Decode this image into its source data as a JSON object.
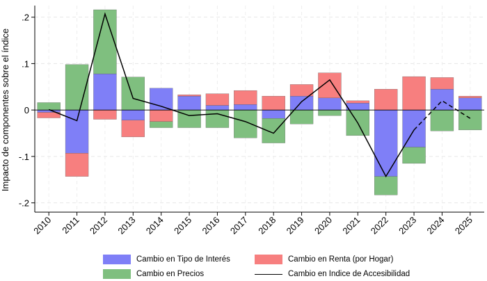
{
  "chart_data": {
    "type": "bar",
    "stacked": true,
    "title": "",
    "ylabel": "Impacto de componentes sobre el índice",
    "xlabel": "",
    "ylim": [
      -0.22,
      0.225
    ],
    "yticks": [
      -0.2,
      -0.1,
      0,
      0.1,
      0.2
    ],
    "ytick_labels": [
      "-.2",
      "-.1",
      "0",
      ".1",
      ".2"
    ],
    "grid": true,
    "legend_position": "bottom",
    "categories": [
      "2010",
      "2011",
      "2012",
      "2013",
      "2014",
      "2015",
      "2016",
      "2017",
      "2018",
      "2019",
      "2020",
      "2021",
      "2022",
      "2023",
      "2024",
      "2025"
    ],
    "series": [
      {
        "name": "Cambio en Tipo de Interés",
        "color": "#7f7ff7",
        "values": [
          -0.005,
          -0.093,
          0.078,
          -0.022,
          0.047,
          0.03,
          0.01,
          0.012,
          -0.018,
          0.03,
          0.026,
          0.015,
          -0.143,
          -0.08,
          0.045,
          0.026
        ]
      },
      {
        "name": "Cambio en Renta (por Hogar)",
        "color": "#f77f7f",
        "values": [
          -0.012,
          -0.05,
          -0.02,
          -0.036,
          -0.025,
          0.003,
          0.025,
          0.03,
          0.03,
          0.025,
          0.054,
          0.005,
          0.045,
          0.072,
          0.025,
          0.004
        ]
      },
      {
        "name": "Cambio en Precios",
        "color": "#7fbf7f",
        "values": [
          0.016,
          0.098,
          0.138,
          0.071,
          -0.013,
          -0.038,
          -0.038,
          -0.06,
          -0.053,
          -0.03,
          -0.012,
          -0.055,
          -0.04,
          -0.035,
          -0.045,
          -0.043
        ]
      },
      {
        "name": "Cambio en Indice de Accesibilidad",
        "type": "line",
        "color": "#000000",
        "values": [
          0.001,
          -0.023,
          0.207,
          0.025,
          0.008,
          -0.012,
          -0.008,
          -0.025,
          -0.05,
          0.018,
          0.065,
          -0.028,
          -0.143,
          -0.043,
          0.02,
          -0.018
        ],
        "dashed_from": "2023"
      }
    ]
  }
}
